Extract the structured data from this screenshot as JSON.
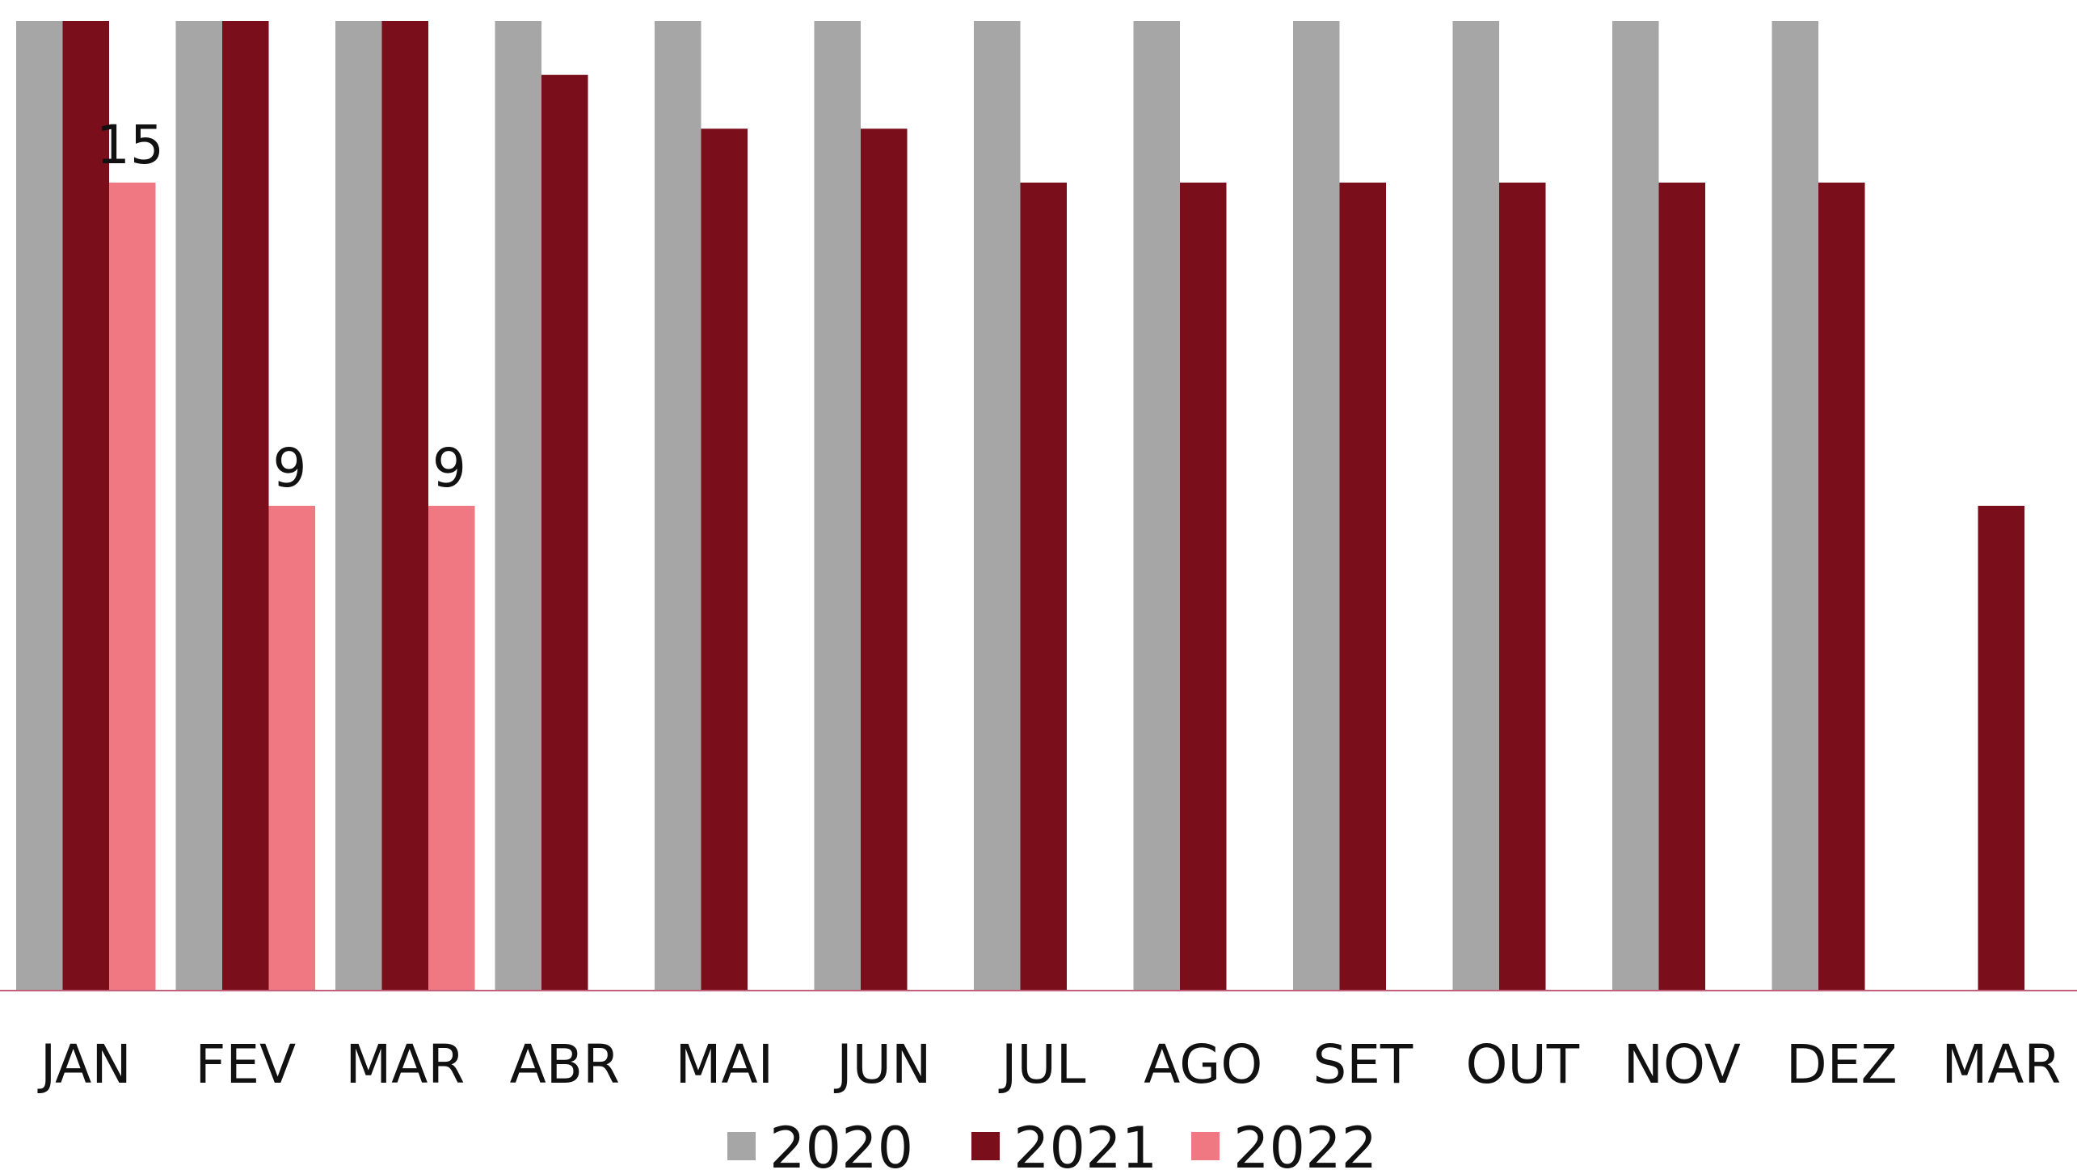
{
  "chart_data": {
    "type": "bar",
    "categories": [
      "JAN",
      "FEV",
      "MAR",
      "ABR",
      "MAI",
      "JUN",
      "JUL",
      "AGO",
      "SET",
      "OUT",
      "NOV",
      "DEZ",
      "MAR"
    ],
    "series": [
      {
        "name": "2020",
        "color": "#a6a6a6",
        "values": [
          18,
          18,
          18,
          18,
          18,
          18,
          18,
          18,
          18,
          18,
          18,
          18,
          null
        ]
      },
      {
        "name": "2021",
        "color": "#7b0e1b",
        "values": [
          18,
          18,
          18,
          17,
          16,
          16,
          15,
          15,
          15,
          15,
          15,
          15,
          9
        ]
      },
      {
        "name": "2022",
        "color": "#f07882",
        "values": [
          15,
          9,
          9,
          null,
          null,
          null,
          null,
          null,
          null,
          null,
          null,
          null,
          null
        ]
      }
    ],
    "data_labels_series": "2022",
    "ylim": [
      0,
      18
    ],
    "grid": false,
    "legend_position": "bottom",
    "title": "",
    "xlabel": "",
    "ylabel": ""
  }
}
